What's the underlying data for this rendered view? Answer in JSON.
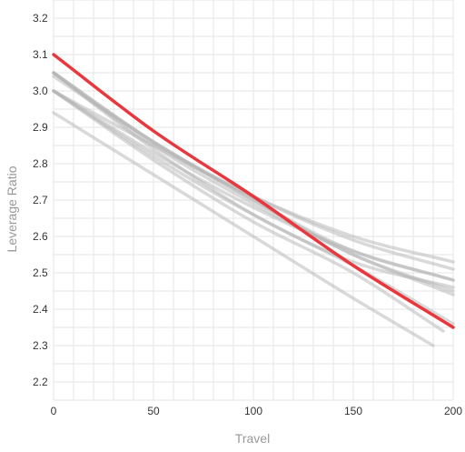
{
  "chart_data": {
    "type": "line",
    "xlabel": "Travel",
    "ylabel": "Leverage Ratio",
    "xlim": [
      0,
      200
    ],
    "ylim": [
      2.15,
      3.25
    ],
    "x_ticks": [
      0,
      50,
      100,
      150,
      200
    ],
    "x_tick_labels": [
      "0",
      "50",
      "100",
      "150",
      "200"
    ],
    "y_ticks": [
      2.2,
      2.3,
      2.4,
      2.5,
      2.6,
      2.7,
      2.8,
      2.9,
      3.0,
      3.1,
      3.2
    ],
    "y_tick_labels": [
      "2.2",
      "2.3",
      "2.4",
      "2.5",
      "2.6",
      "2.7",
      "2.8",
      "2.9",
      "3.0",
      "3.1",
      "3.2"
    ],
    "grid": true,
    "legend": "none",
    "colors": {
      "highlight": "#e8383d",
      "background_series": "#b3b3b3",
      "grid": "#e6e6e6"
    },
    "series": [
      {
        "highlighted": false,
        "x": [
          0,
          50,
          100,
          150,
          190
        ],
        "y": [
          2.94,
          2.77,
          2.6,
          2.43,
          2.3
        ]
      },
      {
        "highlighted": false,
        "x": [
          0,
          50,
          100,
          150,
          195
        ],
        "y": [
          3.0,
          2.81,
          2.64,
          2.5,
          2.34
        ]
      },
      {
        "highlighted": false,
        "x": [
          0,
          50,
          100,
          150,
          200
        ],
        "y": [
          3.05,
          2.84,
          2.66,
          2.52,
          2.36
        ]
      },
      {
        "highlighted": false,
        "x": [
          0,
          50,
          100,
          150,
          200
        ],
        "y": [
          3.04,
          2.86,
          2.7,
          2.55,
          2.45
        ]
      },
      {
        "highlighted": false,
        "x": [
          0,
          50,
          100,
          150,
          200
        ],
        "y": [
          3.05,
          2.85,
          2.69,
          2.55,
          2.44
        ]
      },
      {
        "highlighted": false,
        "x": [
          0,
          50,
          100,
          150,
          200
        ],
        "y": [
          3.0,
          2.83,
          2.68,
          2.56,
          2.48
        ]
      },
      {
        "highlighted": false,
        "x": [
          0,
          50,
          100,
          150,
          200
        ],
        "y": [
          3.05,
          2.86,
          2.7,
          2.56,
          2.48
        ]
      },
      {
        "highlighted": false,
        "x": [
          0,
          50,
          100,
          150,
          200
        ],
        "y": [
          3.0,
          2.85,
          2.71,
          2.6,
          2.53
        ]
      },
      {
        "highlighted": false,
        "x": [
          0,
          50,
          100,
          150,
          200
        ],
        "y": [
          3.05,
          2.86,
          2.71,
          2.59,
          2.51
        ]
      },
      {
        "highlighted": false,
        "x": [
          0,
          50,
          100,
          150,
          200
        ],
        "y": [
          3.0,
          2.82,
          2.66,
          2.53,
          2.46
        ]
      },
      {
        "highlighted": true,
        "x": [
          0,
          50,
          100,
          150,
          200
        ],
        "y": [
          3.1,
          2.89,
          2.71,
          2.52,
          2.35
        ]
      }
    ]
  }
}
